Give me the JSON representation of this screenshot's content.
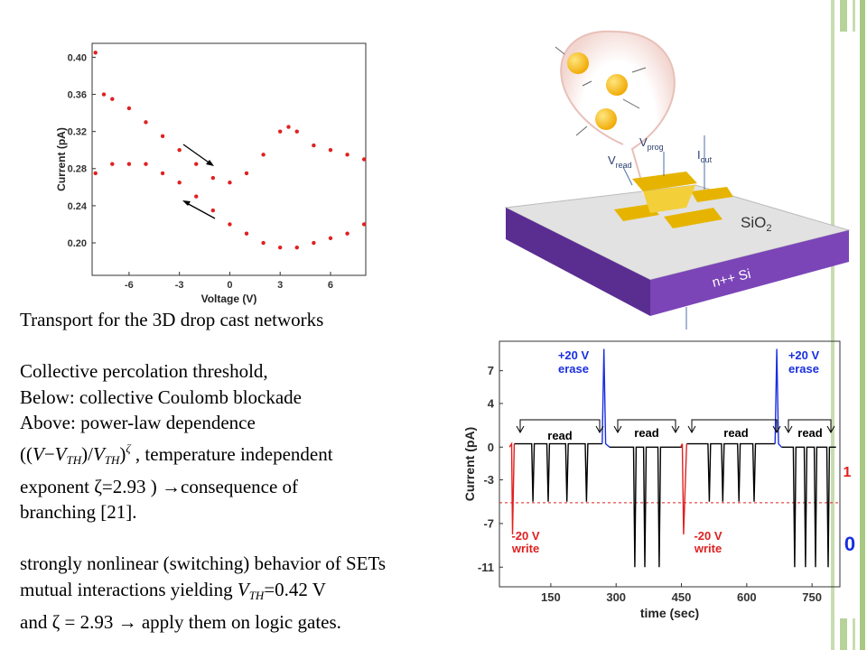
{
  "text": {
    "lines": [
      "Transport for the 3D drop cast networks",
      "Collective percolation threshold,",
      "Below: collective Coulomb blockade",
      "Above: power-law dependence",
      [
        "((",
        "V",
        "−",
        "V",
        "TH",
        ")/",
        "V",
        "TH",
        ")",
        "ζ",
        " , temperature independent"
      ],
      "exponent ζ=2.93 ) →consequence of",
      "branching [21].",
      "strongly nonlinear (switching) behavior of SETs",
      [
        "mutual interactions yielding ",
        "V",
        "TH",
        "=0.42 V"
      ],
      "and ζ = 2.93 → apply them on logic gates."
    ]
  },
  "diagram": {
    "labels": [
      "V",
      "read",
      "V",
      "prog",
      "I",
      "out",
      "SiO",
      "2",
      "n++ Si"
    ]
  },
  "chart_data": [
    {
      "type": "scatter",
      "xlabel": "Voltage (V)",
      "ylabel": "Current (pA)",
      "xlim": [
        -8.2,
        8.1
      ],
      "ylim": [
        0.165,
        0.415
      ],
      "xticks": [
        -6,
        -3,
        0,
        3,
        6
      ],
      "yticks": [
        {
          "value": 0.2,
          "label": "0.20"
        },
        0.24,
        0.28,
        0.32,
        0.36,
        {
          "value": 0.4,
          "label": "0.40"
        }
      ],
      "series": [
        {
          "color": "#e02020",
          "x": [
            -8,
            -7.5,
            -7,
            -6,
            -5,
            -4,
            -3,
            -2,
            -1,
            0,
            1,
            2,
            3,
            3.5,
            4,
            5,
            6,
            7,
            8
          ],
          "values": [
            0.405,
            0.36,
            0.355,
            0.345,
            0.33,
            0.315,
            0.3,
            0.285,
            0.27,
            0.265,
            0.275,
            0.295,
            0.32,
            0.325,
            0.32,
            0.305,
            0.3,
            0.295,
            0.29
          ]
        },
        {
          "color": "#e02020",
          "x": [
            8,
            7,
            6,
            5,
            4,
            3,
            2,
            1,
            0,
            -1,
            -2,
            -3,
            -4,
            -5,
            -6,
            -7,
            -8
          ],
          "values": [
            0.22,
            0.21,
            0.205,
            0.2,
            0.195,
            0.195,
            0.2,
            0.21,
            0.22,
            0.235,
            0.25,
            0.265,
            0.275,
            0.285,
            0.285,
            0.285,
            0.275
          ]
        }
      ]
    },
    {
      "type": "line",
      "xlabel": "time (sec)",
      "ylabel": "Current (pA)",
      "xlim": [
        32,
        814
      ],
      "ylim": [
        -12.8,
        9.7
      ],
      "xticks": [
        150,
        300,
        450,
        600,
        750
      ],
      "yticks": [
        7,
        4,
        0,
        -3,
        -7,
        -11
      ],
      "hline": -5.1,
      "hline_color": "#e02020",
      "annotations": [
        "+20 V",
        "erase",
        "read",
        "read",
        "read",
        "read",
        "-20 V",
        "write",
        "-20 V",
        "write",
        "+20 V",
        "erase",
        "1",
        "0"
      ],
      "series": [
        {
          "color": "#000000",
          "x": [
            66,
            106,
            109,
            112,
            141,
            144,
            147,
            184,
            187,
            190,
            229,
            232,
            235,
            268,
            null,
            285,
            340,
            343,
            346,
            363,
            366,
            369,
            396,
            399,
            402,
            452,
            null,
            462,
            511,
            514,
            517,
            542,
            545,
            548,
            579,
            582,
            585,
            614,
            617,
            620,
            665,
            null,
            680,
            707,
            710,
            713,
            732,
            735,
            738,
            755,
            758,
            761,
            784,
            787,
            790,
            805
          ],
          "values": [
            0.3,
            0.3,
            -5,
            0.3,
            0.3,
            -5,
            0.3,
            0.3,
            -5,
            0.3,
            0.3,
            -5,
            0.3,
            0.3,
            null,
            0,
            0,
            -11,
            0,
            0,
            -11,
            0,
            0,
            -11,
            0,
            0,
            null,
            0.3,
            0.3,
            -5,
            0.3,
            0.3,
            -5,
            0.3,
            0.3,
            -5,
            0.3,
            0.3,
            -5,
            0.3,
            0.3,
            null,
            0,
            0,
            -11,
            0,
            0,
            -11,
            0,
            0,
            -11,
            0,
            0,
            -11,
            0,
            0
          ]
        },
        {
          "color": "#e02020",
          "x": [
            55,
            60,
            62,
            66,
            null,
            448,
            452,
            455,
            462
          ],
          "values": [
            0,
            0.3,
            -8,
            0.3,
            null,
            0,
            0.3,
            -8,
            0.3
          ]
        },
        {
          "color": "#1a2ee0",
          "x": [
            268,
            272,
            276,
            285,
            null,
            665,
            669,
            673,
            680
          ],
          "values": [
            0.3,
            9,
            0.3,
            0,
            null,
            0.3,
            9,
            0.3,
            0
          ]
        }
      ]
    }
  ]
}
